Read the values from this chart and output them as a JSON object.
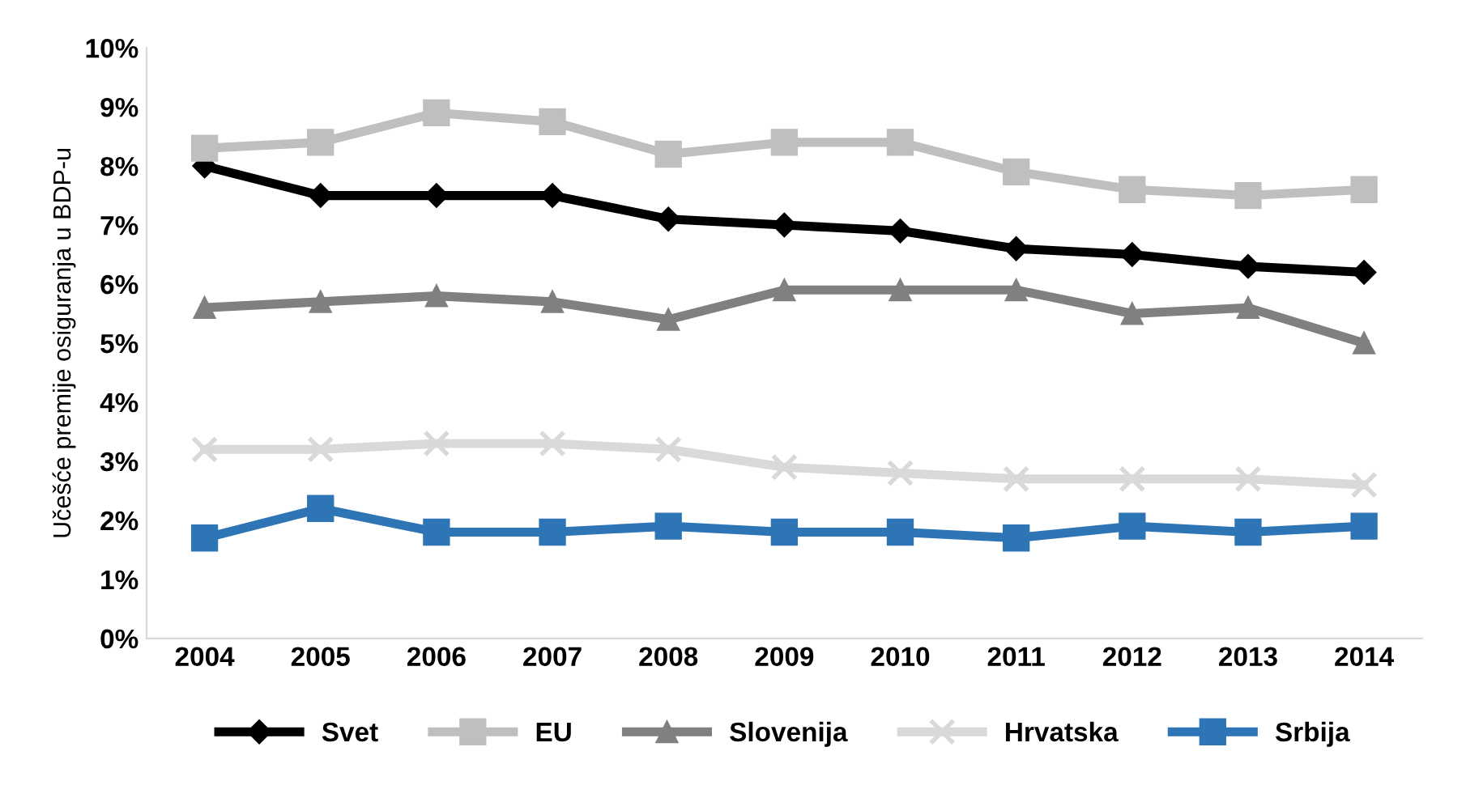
{
  "chart_data": {
    "type": "line",
    "ylabel": "Učešće premije osiguranja u BDP-u",
    "categories": [
      "2004",
      "2005",
      "2006",
      "2007",
      "2008",
      "2009",
      "2010",
      "2011",
      "2012",
      "2013",
      "2014"
    ],
    "series": [
      {
        "name": "Svet",
        "color": "#000000",
        "marker": "diamond",
        "values": [
          8.0,
          7.5,
          7.5,
          7.5,
          7.1,
          7.0,
          6.9,
          6.6,
          6.5,
          6.3,
          6.2
        ]
      },
      {
        "name": "EU",
        "color": "#bfbfbf",
        "marker": "square",
        "values": [
          8.3,
          8.4,
          8.9,
          8.75,
          8.2,
          8.4,
          8.4,
          7.9,
          7.6,
          7.5,
          7.6
        ]
      },
      {
        "name": "Slovenija",
        "color": "#808080",
        "marker": "triangle",
        "values": [
          5.6,
          5.7,
          5.8,
          5.7,
          5.4,
          5.9,
          5.9,
          5.9,
          5.5,
          5.6,
          5.0
        ]
      },
      {
        "name": "Hrvatska",
        "color": "#d9d9d9",
        "marker": "cross",
        "values": [
          3.2,
          3.2,
          3.3,
          3.3,
          3.2,
          2.9,
          2.8,
          2.7,
          2.7,
          2.7,
          2.6
        ]
      },
      {
        "name": "Srbija",
        "color": "#2e75b6",
        "marker": "square",
        "values": [
          1.7,
          2.2,
          1.8,
          1.8,
          1.9,
          1.8,
          1.8,
          1.7,
          1.9,
          1.8,
          1.9
        ]
      }
    ],
    "ylim": [
      0,
      10
    ],
    "yticks": [
      {
        "value": 0,
        "label": "0%"
      },
      {
        "value": 1,
        "label": "1%"
      },
      {
        "value": 2,
        "label": "2%"
      },
      {
        "value": 3,
        "label": "3%"
      },
      {
        "value": 4,
        "label": "4%"
      },
      {
        "value": 5,
        "label": "5%"
      },
      {
        "value": 6,
        "label": "6%"
      },
      {
        "value": 7,
        "label": "7%"
      },
      {
        "value": 8,
        "label": "8%"
      },
      {
        "value": 9,
        "label": "9%"
      },
      {
        "value": 10,
        "label": "10%"
      }
    ],
    "legend": "bottom",
    "line_style": "solid"
  }
}
